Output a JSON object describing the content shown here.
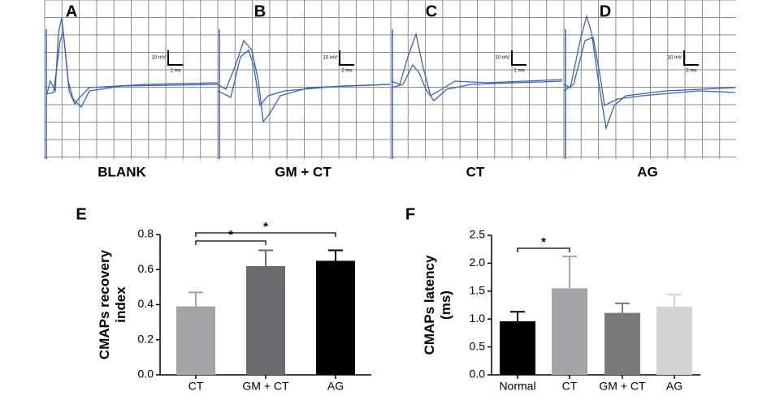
{
  "traces": {
    "panels": [
      {
        "letter": "A",
        "label": "BLANK",
        "scale_y": "10 mV",
        "scale_x": "2 ms"
      },
      {
        "letter": "B",
        "label": "GM + CT",
        "scale_y": "10 mV",
        "scale_x": "2 ms"
      },
      {
        "letter": "C",
        "label": "CT",
        "scale_y": "10 mV",
        "scale_x": "2 ms"
      },
      {
        "letter": "D",
        "label": "AG",
        "scale_y": "10 mV",
        "scale_x": "2 ms"
      }
    ]
  },
  "chart_data": [
    {
      "type": "bar",
      "panel": "E",
      "ylabel": [
        "CMAPs recovery",
        "index"
      ],
      "categories": [
        "CT",
        "GM + CT",
        "AG"
      ],
      "values": [
        0.39,
        0.62,
        0.65
      ],
      "errors": [
        0.08,
        0.09,
        0.06
      ],
      "colors": [
        "#a4a4a8",
        "#6a6a6e",
        "#000000"
      ],
      "ylim": [
        0,
        0.8
      ],
      "yticks": [
        {
          "value": 0,
          "label": "0.0"
        },
        0.2,
        0.4,
        0.6,
        0.8
      ],
      "brackets": [
        "*",
        "*"
      ]
    },
    {
      "type": "bar",
      "panel": "F",
      "ylabel": [
        "CMAPs latency",
        "(ms)"
      ],
      "categories": [
        "Normal",
        "CT",
        "GM + CT",
        "AG"
      ],
      "values": [
        0.96,
        1.55,
        1.11,
        1.22
      ],
      "errors": [
        0.17,
        0.57,
        0.17,
        0.22
      ],
      "colors": [
        "#000000",
        "#a4a4a8",
        "#7a7a7a",
        "#d3d3d3"
      ],
      "ylim": [
        0,
        2.5
      ],
      "yticks": [
        {
          "value": 0,
          "label": "0.0"
        },
        0.5,
        {
          "value": 1,
          "label": "1.0"
        },
        1.5,
        {
          "value": 2,
          "label": "2.0"
        },
        2.5
      ],
      "brackets": [
        "*"
      ]
    }
  ]
}
